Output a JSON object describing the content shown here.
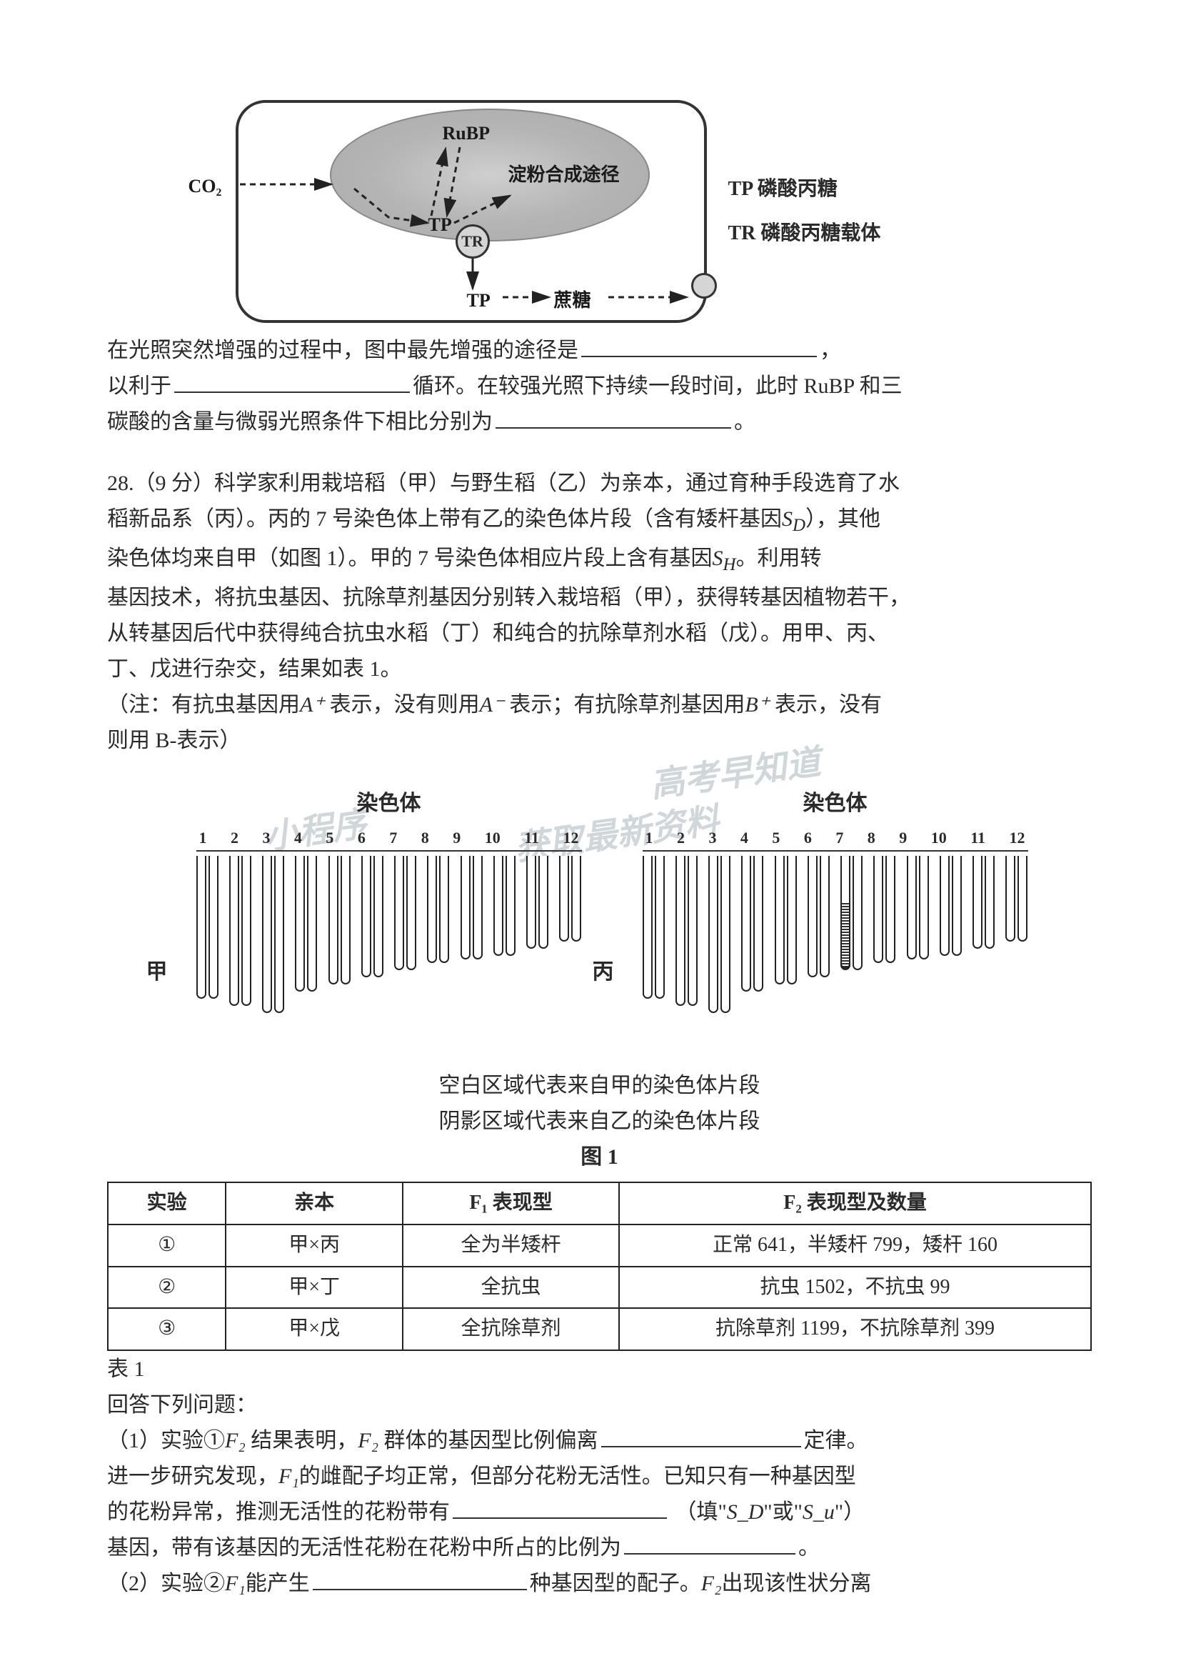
{
  "diagram1": {
    "labels": {
      "co2": "CO₂",
      "rubp": "RuBP",
      "tp1": "TP",
      "tr": "TR",
      "tp2": "TP",
      "starch": "淀粉合成途径",
      "sugar": "蔗糖"
    },
    "legend": {
      "tp_full": "TP 磷酸丙糖",
      "tr_full": "TR 磷酸丙糖载体"
    },
    "colors": {
      "border": "#333333",
      "ellipse_fill": "#b8b8b8",
      "bg": "#ffffff"
    }
  },
  "text27": {
    "p1_a": "在光照突然增强的过程中，图中最先增强的途径是",
    "p1_b": "，",
    "p2_a": "以利于",
    "p2_b": "循环。在较强光照下持续一段时间，此时 RuBP 和三",
    "p3_a": "碳酸的含量与微弱光照条件下相比分别为",
    "p3_b": "。"
  },
  "q28": {
    "intro1": "28.（9 分）科学家利用栽培稻（甲）与野生稻（乙）为亲本，通过育种手段选育了水",
    "intro2": "稻新品系（丙）。丙的 7 号染色体上带有乙的染色体片段（含有矮杆基因",
    "intro2b": "），其他",
    "intro3": "染色体均来自甲（如图 1）。甲的 7 号染色体相应片段上含有基因",
    "intro3b": "。利用转",
    "intro4": "基因技术，将抗虫基因、抗除草剂基因分别转入栽培稻（甲），获得转基因植物若干，",
    "intro5": "从转基因后代中获得纯合抗虫水稻（丁）和纯合的抗除草剂水稻（戊）。用甲、丙、",
    "intro6": "丁、戊进行杂交，结果如表 1。",
    "note1": "（注：有抗虫基因用",
    "note1_sym": "A⁺",
    "note1b": "表示，没有则用",
    "note1_sym2": "A⁻",
    "note1c": "表示；有抗除草剂基因用",
    "note1_sym3": "B⁺",
    "note1d": "表示，没有",
    "note2": "则用 B-表示）"
  },
  "chrom": {
    "title": "染色体",
    "label_left": "甲",
    "label_right": "丙",
    "heights_left": [
      200,
      210,
      220,
      190,
      180,
      170,
      160,
      150,
      145,
      140,
      130,
      120
    ],
    "heights_right": [
      200,
      210,
      220,
      190,
      180,
      170,
      160,
      150,
      145,
      140,
      130,
      120
    ],
    "shaded_chrom_right_index": 7,
    "caption1": "空白区域代表来自甲的染色体片段",
    "caption2": "阴影区域代表来自乙的染色体片段",
    "caption3": "图 1"
  },
  "watermarks": {
    "w1": "小程序",
    "w2": "高考早知道",
    "w3": "获取最新资料"
  },
  "table": {
    "headers": [
      "实验",
      "亲本",
      "F₁ 表现型",
      "F₂ 表现型及数量"
    ],
    "rows": [
      [
        "①",
        "甲×丙",
        "全为半矮杆",
        "正常 641，半矮杆 799，矮杆 160"
      ],
      [
        "②",
        "甲×丁",
        "全抗虫",
        "抗虫 1502，不抗虫 99"
      ],
      [
        "③",
        "甲×戊",
        "全抗除草剂",
        "抗除草剂 1199，不抗除草剂 399"
      ]
    ],
    "col_widths": [
      "12%",
      "18%",
      "22%",
      "48%"
    ],
    "caption": "表 1"
  },
  "questions": {
    "ans_heading": "回答下列问题：",
    "q1a": "（1）实验①",
    "q1_f2": "F₂",
    "q1b": "结果表明，",
    "q1c": "群体的基因型比例偏离",
    "q1d": "定律。",
    "q1e": "进一步研究发现，",
    "q1_f1": "F₁",
    "q1f": "的雌配子均正常，但部分花粉无活性。已知只有一种基因型",
    "q1g": "的花粉异常，推测无活性的花粉带有",
    "q1h": "（填\"",
    "q1_sd": "S_D",
    "q1i": "\"或\"",
    "q1_su": "S_u",
    "q1j": "\"）",
    "q1k": "基因，带有该基因的无活性花粉在花粉中所占的比例为",
    "q1l": "。",
    "q2a": "（2）实验②",
    "q2b": "能产生",
    "q2c": "种基因型的配子。",
    "q2d": "出现该性状分离"
  }
}
